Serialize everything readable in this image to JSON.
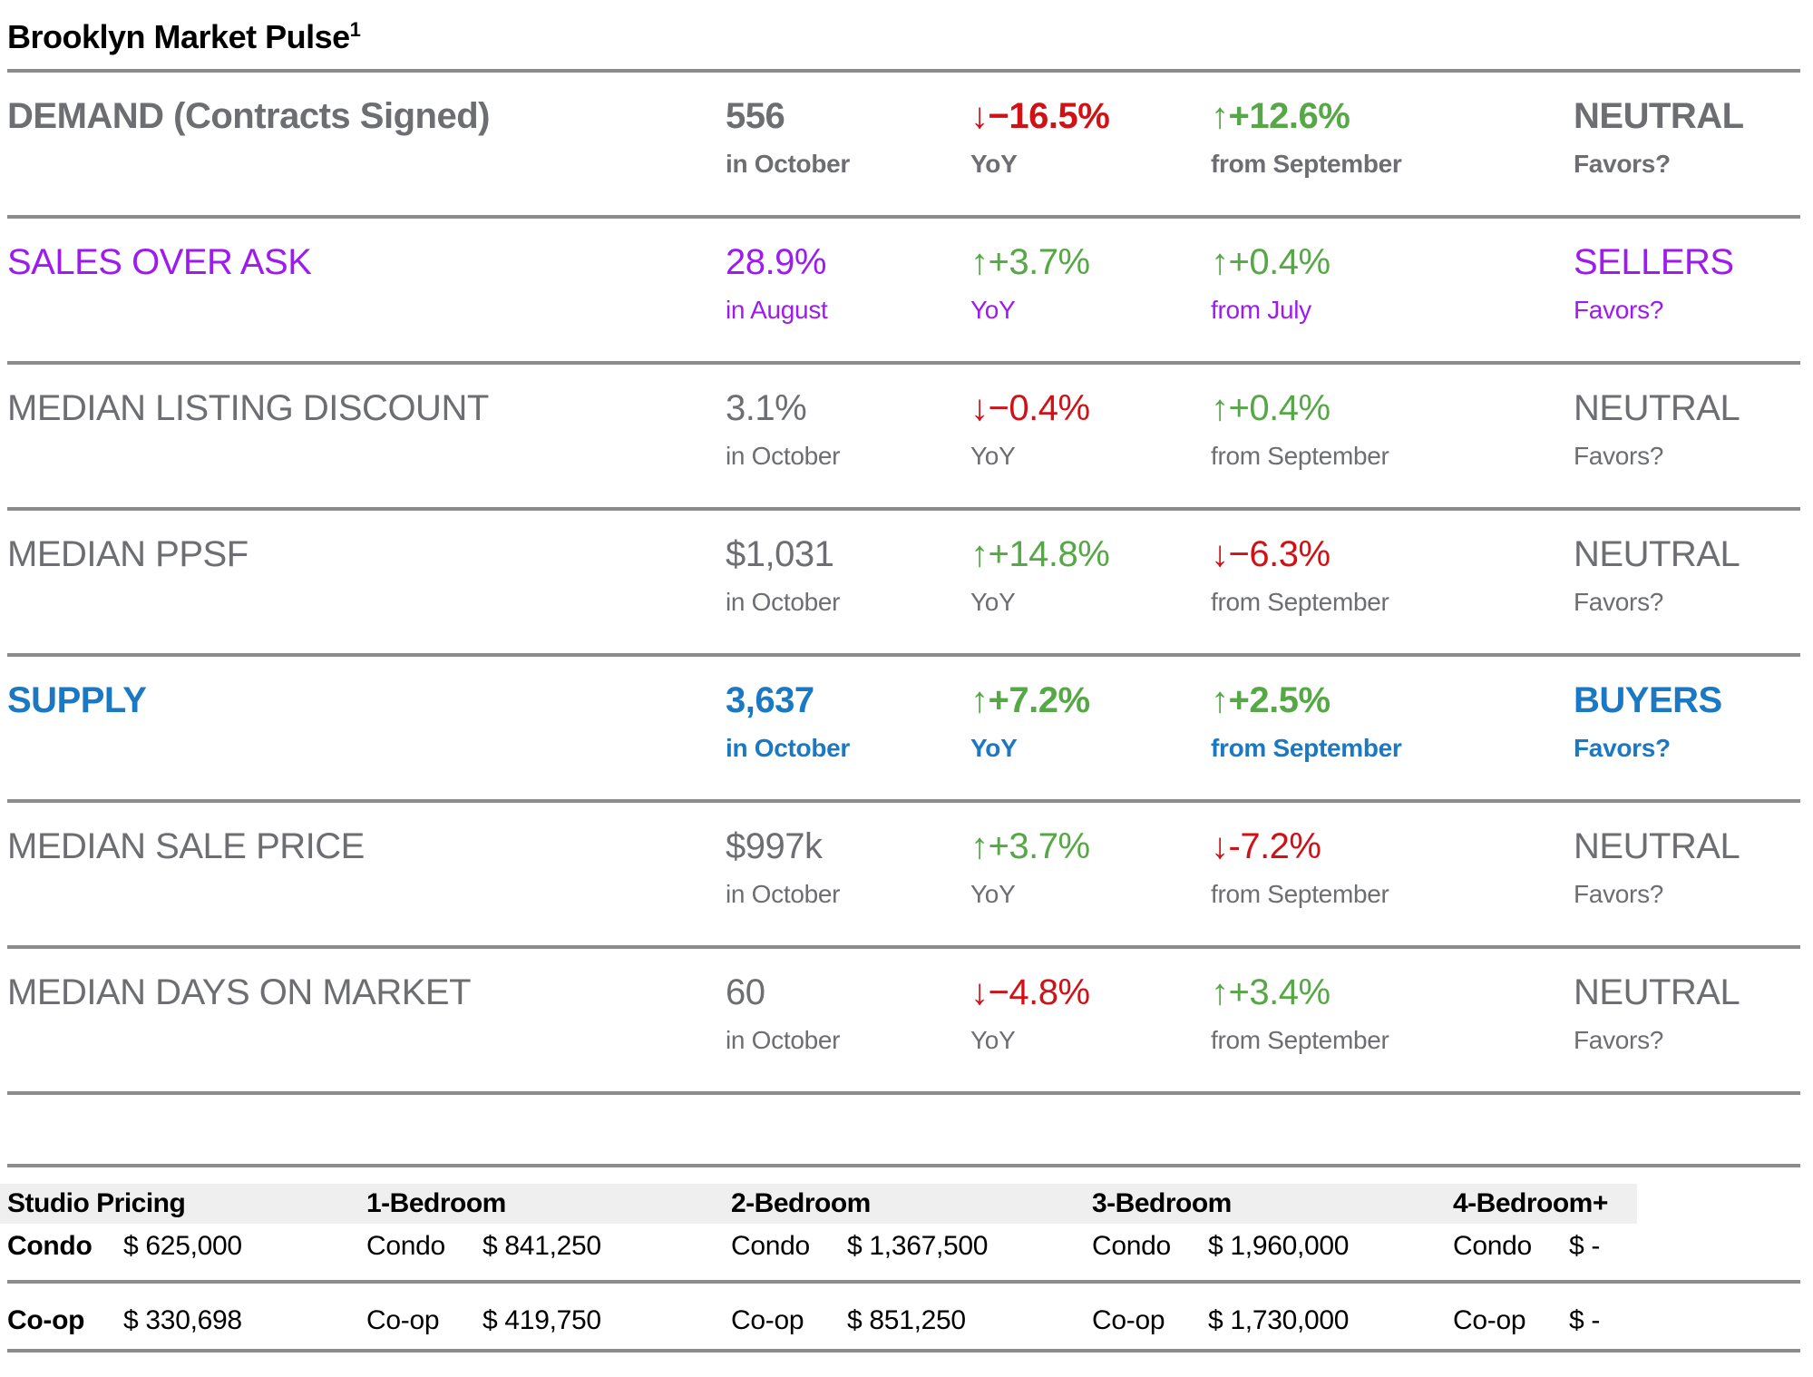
{
  "colors": {
    "gray": "#6d6e71",
    "purple": "#9e1bf0",
    "blue": "#1b78c3",
    "green": "#56a746",
    "red": "#d01217",
    "divider": "#8c8c8c",
    "header_bg": "#efefef",
    "black": "#000000"
  },
  "title": {
    "text": "Brooklyn Market Pulse",
    "superscript": "1"
  },
  "metrics": {
    "rows": [
      {
        "label": "DEMAND (Contracts Signed)",
        "value": "556",
        "period": "in October",
        "yoy": "↓−16.5%",
        "yoy_label": "YoY",
        "mom": "↑+12.6%",
        "mom_label": "from September",
        "favors": "NEUTRAL",
        "favors_label": "Favors?"
      },
      {
        "label": "SALES OVER ASK",
        "value": "28.9%",
        "period": "in August",
        "yoy": "↑+3.7%",
        "yoy_label": "YoY",
        "mom": "↑+0.4%",
        "mom_label": "from July",
        "favors": "SELLERS",
        "favors_label": "Favors?"
      },
      {
        "label": "MEDIAN LISTING DISCOUNT",
        "value": "3.1%",
        "period": "in October",
        "yoy": "↓−0.4%",
        "yoy_label": "YoY",
        "mom": "↑+0.4%",
        "mom_label": "from September",
        "favors": "NEUTRAL",
        "favors_label": "Favors?"
      },
      {
        "label": "MEDIAN PPSF",
        "value": "$1,031",
        "period": "in October",
        "yoy": "↑+14.8%",
        "yoy_label": "YoY",
        "mom": "↓−6.3%",
        "mom_label": "from September",
        "favors": "NEUTRAL",
        "favors_label": "Favors?"
      },
      {
        "label": "SUPPLY",
        "value": "3,637",
        "period": "in October",
        "yoy": "↑+7.2%",
        "yoy_label": "YoY",
        "mom": "↑+2.5%",
        "mom_label": "from September",
        "favors": "BUYERS",
        "favors_label": "Favors?"
      },
      {
        "label": "MEDIAN SALE PRICE",
        "value": "$997k",
        "period": "in October",
        "yoy": "↑+3.7%",
        "yoy_label": "YoY",
        "mom": "↓-7.2%",
        "mom_label": "from September",
        "favors": "NEUTRAL",
        "favors_label": "Favors?"
      },
      {
        "label": "MEDIAN DAYS ON MARKET",
        "value": "60",
        "period": "in October",
        "yoy": "↓−4.8%",
        "yoy_label": "YoY",
        "mom": "↑+3.4%",
        "mom_label": "from September",
        "favors": "NEUTRAL",
        "favors_label": "Favors?"
      }
    ]
  },
  "pricing": {
    "columns": [
      {
        "header": "Studio Pricing",
        "condo_label": "Condo",
        "condo_value": "$ 625,000",
        "coop_label": "Co-op",
        "coop_value": "$ 330,698"
      },
      {
        "header": "1-Bedroom",
        "condo_label": "Condo",
        "condo_value": "$ 841,250",
        "coop_label": "Co-op",
        "coop_value": "$ 419,750"
      },
      {
        "header": "2-Bedroom",
        "condo_label": "Condo",
        "condo_value": "$ 1,367,500",
        "coop_label": "Co-op",
        "coop_value": "$ 851,250"
      },
      {
        "header": "3-Bedroom",
        "condo_label": "Condo",
        "condo_value": "$ 1,960,000",
        "coop_label": "Co-op",
        "coop_value": "$ 1,730,000"
      },
      {
        "header": "4-Bedroom+",
        "condo_label": "Condo",
        "condo_value": "$ -",
        "coop_label": "Co-op",
        "coop_value": "$ -"
      }
    ]
  }
}
